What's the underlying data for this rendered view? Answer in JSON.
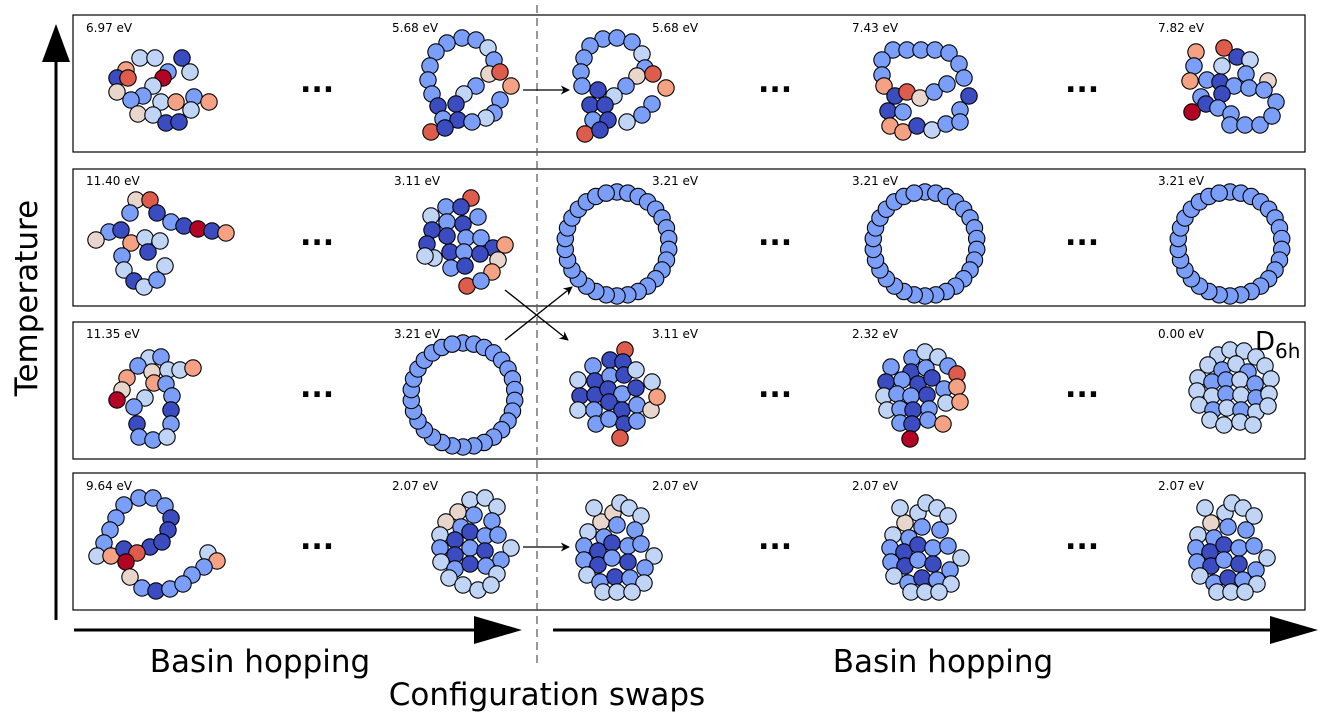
{
  "axis": {
    "y_label": "Temperature",
    "x_label_left": "Basin hopping",
    "x_label_right": "Basin hopping",
    "center_label": "Configuration swaps"
  },
  "symmetry_label": {
    "main": "D",
    "sub": "6h"
  },
  "ellipsis": "...",
  "colors": {
    "very_low": "#3b4cc0",
    "low": "#7b9ff9",
    "neutral_cool": "#c0d4f5",
    "neutral_warm": "#e8d6cc",
    "warm": "#f4a283",
    "hot": "#dd5c4b",
    "very_hot": "#b40426",
    "outline": "#000000"
  },
  "rows": [
    {
      "energies": [
        "6.97 eV",
        "5.68 eV",
        "5.68 eV",
        "7.43 eV",
        "7.82 eV"
      ],
      "transition": "straight"
    },
    {
      "energies": [
        "11.40 eV",
        "3.11 eV",
        "3.21 eV",
        "3.21 eV",
        "3.21 eV"
      ],
      "transition": "swap"
    },
    {
      "energies": [
        "11.35 eV",
        "3.21 eV",
        "3.11 eV",
        "2.32 eV",
        "0.00 eV"
      ],
      "transition": "swap"
    },
    {
      "energies": [
        "9.64 eV",
        "2.07 eV",
        "2.07 eV",
        "2.07 eV",
        "2.07 eV"
      ],
      "transition": "straight"
    }
  ]
}
